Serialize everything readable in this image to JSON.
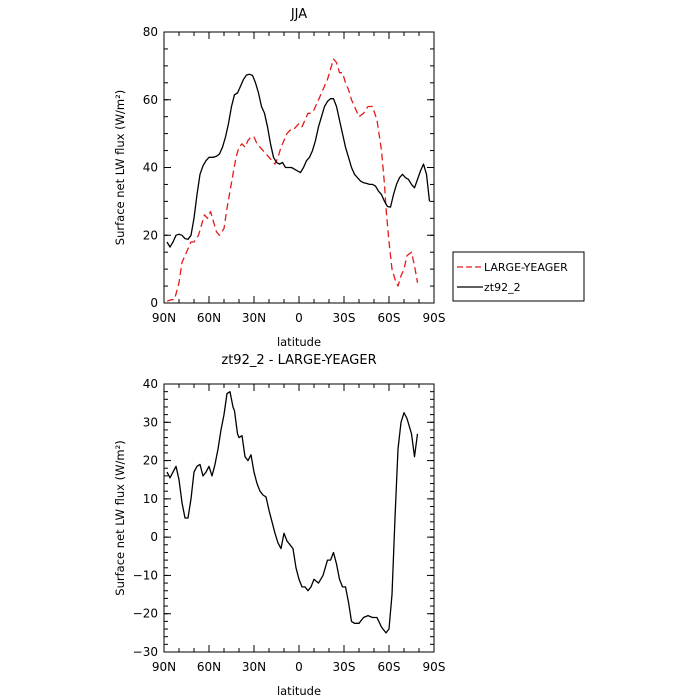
{
  "chart_data": [
    {
      "type": "line",
      "title": "JJA",
      "xlabel": "latitude",
      "ylabel": "Surface net LW flux (W/m²)",
      "xlim": [
        90,
        -90
      ],
      "ylim": [
        0,
        80
      ],
      "x_ticks": [
        90,
        60,
        30,
        0,
        -30,
        -60,
        -90
      ],
      "x_tick_labels": [
        "90N",
        "60N",
        "30N",
        "0",
        "30S",
        "60S",
        "90S"
      ],
      "y_ticks": [
        0,
        20,
        40,
        60,
        80
      ],
      "y_tick_labels": [
        "0",
        "20",
        "40",
        "60",
        "80"
      ],
      "grid": false,
      "legend_position": "outside-right",
      "series": [
        {
          "name": "LARGE-YEAGER",
          "color": "#e41a1c",
          "dash": "dashed",
          "x": [
            88,
            85,
            83,
            80,
            78,
            75,
            72,
            70,
            67,
            65,
            63,
            61,
            59,
            57,
            55,
            53,
            50,
            48,
            46,
            44,
            42,
            40,
            38,
            36,
            34,
            32,
            30,
            28,
            26,
            24,
            22,
            20,
            18,
            16,
            14,
            12,
            10,
            8,
            6,
            4,
            2,
            0,
            -2,
            -4,
            -6,
            -8,
            -10,
            -13,
            -16,
            -19,
            -21,
            -23,
            -25,
            -27,
            -29,
            -31,
            -33,
            -35,
            -37,
            -40,
            -43,
            -46,
            -49,
            -52,
            -55,
            -57,
            -58,
            -60,
            -62,
            -64,
            -66,
            -68,
            -70,
            -72,
            -75,
            -77,
            -79
          ],
          "y": [
            0.5,
            1,
            1,
            6,
            12,
            15,
            18,
            18,
            20,
            23,
            26,
            25,
            27,
            24,
            21,
            20,
            22,
            28,
            33,
            38,
            43,
            46,
            47,
            46,
            48,
            49,
            49,
            47,
            46,
            45,
            44,
            43,
            42,
            41,
            43,
            46,
            48,
            50,
            51,
            51,
            52,
            53,
            52,
            54,
            56,
            56,
            57,
            60,
            63,
            66,
            69,
            72,
            71,
            68,
            68,
            65,
            63,
            60,
            58,
            55,
            56,
            58,
            58,
            54,
            45,
            35,
            28,
            18,
            10,
            7,
            5,
            8,
            10,
            14,
            15,
            11,
            6
          ]
        },
        {
          "name": "zt92_2",
          "color": "#000000",
          "dash": "solid",
          "x": [
            88,
            86,
            84,
            82,
            80,
            78,
            76,
            74,
            72,
            70,
            68,
            66,
            64,
            62,
            60,
            57,
            55,
            53,
            51,
            49,
            47,
            45,
            43,
            41,
            39,
            37,
            35,
            33,
            31,
            29,
            27,
            25,
            23,
            21,
            19,
            17,
            15,
            13,
            11,
            9,
            7,
            5,
            3,
            1,
            -1,
            -3,
            -5,
            -7,
            -9,
            -11,
            -13,
            -15,
            -17,
            -19,
            -21,
            -23,
            -25,
            -27,
            -29,
            -31,
            -33,
            -35,
            -37,
            -39,
            -41,
            -43,
            -45,
            -47,
            -49,
            -51,
            -53,
            -55,
            -57,
            -59,
            -61,
            -63,
            -65,
            -67,
            -69,
            -71,
            -73,
            -75,
            -77,
            -79,
            -81,
            -83,
            -85,
            -87
          ],
          "y": [
            18,
            16.5,
            18,
            20,
            20.3,
            20,
            19,
            18.8,
            20,
            25,
            32,
            38,
            40.5,
            42,
            43,
            43,
            43.3,
            44,
            46,
            49,
            53,
            58,
            61.5,
            62,
            64,
            66,
            67.3,
            67.5,
            67.2,
            65,
            62,
            58,
            56,
            52,
            47,
            43,
            41.5,
            41,
            41.5,
            40,
            40,
            40,
            39.5,
            39,
            38.5,
            40,
            42,
            43,
            45,
            48,
            52,
            55,
            58,
            59.5,
            60.3,
            60.3,
            58,
            54,
            50,
            46,
            43,
            40,
            38,
            37,
            36,
            35.5,
            35.3,
            35,
            35,
            34.5,
            33,
            32,
            30,
            28.5,
            28.3,
            32,
            35,
            37,
            38,
            37,
            36.5,
            35,
            34,
            36.5,
            39,
            41,
            38,
            30
          ]
        }
      ]
    },
    {
      "type": "line",
      "title": "zt92_2 - LARGE-YEAGER",
      "xlabel": "latitude",
      "ylabel": "Surface net LW flux (W/m²)",
      "xlim": [
        90,
        -90
      ],
      "ylim": [
        -30,
        40
      ],
      "x_ticks": [
        90,
        60,
        30,
        0,
        -30,
        -60,
        -90
      ],
      "x_tick_labels": [
        "90N",
        "60N",
        "30N",
        "0",
        "30S",
        "60S",
        "90S"
      ],
      "y_ticks": [
        -30,
        -20,
        -10,
        0,
        10,
        20,
        30,
        40
      ],
      "y_tick_labels": [
        "−30",
        "−20",
        "−10",
        "0",
        "10",
        "20",
        "30",
        "40"
      ],
      "grid": false,
      "series": [
        {
          "color": "#000000",
          "dash": "solid",
          "x": [
            88,
            86,
            84,
            82,
            80,
            78,
            76,
            74,
            72,
            70,
            68,
            66,
            64,
            62,
            60,
            58,
            56,
            54,
            52,
            50,
            48,
            46,
            44,
            43,
            41,
            40,
            38,
            36,
            34,
            32,
            30,
            28,
            26,
            24,
            22,
            20,
            18,
            16,
            14,
            12,
            10,
            8,
            6,
            4,
            2,
            0,
            -2,
            -4,
            -6,
            -8,
            -10,
            -13,
            -16,
            -19,
            -21,
            -23,
            -25,
            -27,
            -29,
            -31,
            -33,
            -35,
            -37,
            -40,
            -43,
            -46,
            -49,
            -52,
            -55,
            -58,
            -60,
            -62,
            -64,
            -66,
            -68,
            -70,
            -72,
            -75,
            -77,
            -79
          ],
          "y": [
            17,
            15.5,
            17,
            18.5,
            15,
            9,
            5,
            5,
            10,
            17,
            18.5,
            19,
            16,
            17,
            18.5,
            16,
            19,
            23,
            28,
            32,
            37.5,
            38,
            34,
            33,
            27,
            26,
            26.5,
            21,
            20,
            21.5,
            17,
            14,
            12,
            11,
            10.5,
            7,
            4,
            1,
            -1.5,
            -3,
            1,
            -1,
            -2,
            -3,
            -8,
            -11,
            -13,
            -13,
            -14,
            -13,
            -11,
            -12,
            -10,
            -6,
            -6,
            -4,
            -7,
            -11,
            -13,
            -13,
            -17,
            -22,
            -22.5,
            -22.5,
            -21,
            -20.5,
            -21,
            -21,
            -23.5,
            -25,
            -24,
            -15,
            5,
            23,
            30,
            32.5,
            31,
            27,
            21,
            27
          ]
        }
      ]
    }
  ]
}
